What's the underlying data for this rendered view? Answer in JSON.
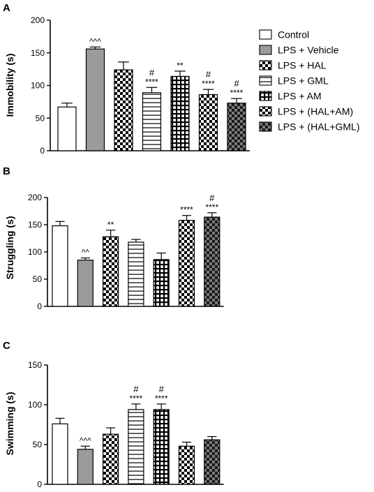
{
  "colors": {
    "axis": "#000000",
    "white_fill": "#ffffff",
    "grey_fill": "#9b9b9b",
    "dark_fill": "#555555",
    "edge": "#000000"
  },
  "legend": [
    {
      "label": "Control",
      "pattern": "white"
    },
    {
      "label": "LPS + Vehicle",
      "pattern": "grey"
    },
    {
      "label": "LPS + HAL",
      "pattern": "checker"
    },
    {
      "label": "LPS + GML",
      "pattern": "hlines"
    },
    {
      "label": "LPS + AM",
      "pattern": "grid"
    },
    {
      "label": "LPS + (HAL+AM)",
      "pattern": "checker"
    },
    {
      "label": "LPS + (HAL+GML)",
      "pattern": "darkchecker"
    }
  ],
  "chart_data": [
    {
      "panel": "A",
      "type": "bar",
      "ylabel": "Immobility (s)",
      "ylim": [
        0,
        200
      ],
      "yticks": [
        "0",
        "50",
        "100",
        "150",
        "200"
      ],
      "categories": [
        "Control",
        "LPS + Vehicle",
        "LPS + HAL",
        "LPS + GML",
        "LPS + AM",
        "LPS + (HAL+AM)",
        "LPS + (HAL+GML)"
      ],
      "values": [
        67,
        156,
        124,
        89,
        114,
        86,
        73
      ],
      "errors": [
        6,
        3,
        12,
        8,
        8,
        8,
        7
      ],
      "annotations": [
        [
          "",
          ""
        ],
        [
          "^^^",
          ""
        ],
        [
          "",
          ""
        ],
        [
          "#",
          "****"
        ],
        [
          "**",
          ""
        ],
        [
          "#",
          "****"
        ],
        [
          "#",
          "****"
        ]
      ]
    },
    {
      "panel": "B",
      "type": "bar",
      "ylabel": "Struggling (s)",
      "ylim": [
        0,
        200
      ],
      "yticks": [
        "0",
        "50",
        "100",
        "150",
        "200"
      ],
      "categories": [
        "Control",
        "LPS + Vehicle",
        "LPS + HAL",
        "LPS + GML",
        "LPS + AM",
        "LPS + (HAL+AM)",
        "LPS + (HAL+GML)"
      ],
      "values": [
        148,
        85,
        128,
        118,
        86,
        158,
        164
      ],
      "errors": [
        8,
        4,
        12,
        5,
        12,
        9,
        8
      ],
      "annotations": [
        [
          "",
          ""
        ],
        [
          "^^",
          ""
        ],
        [
          "**",
          ""
        ],
        [
          "",
          ""
        ],
        [
          "",
          ""
        ],
        [
          "****",
          ""
        ],
        [
          "#",
          "****"
        ]
      ]
    },
    {
      "panel": "C",
      "type": "bar",
      "ylabel": "Swimming (s)",
      "ylim": [
        0,
        150
      ],
      "yticks": [
        "0",
        "50",
        "100",
        "150"
      ],
      "categories": [
        "Control",
        "LPS + Vehicle",
        "LPS + HAL",
        "LPS + GML",
        "LPS + AM",
        "LPS + (HAL+AM)",
        "LPS + (HAL+GML)"
      ],
      "values": [
        76,
        44,
        63,
        94,
        94,
        48,
        56
      ],
      "errors": [
        7,
        4,
        8,
        7,
        7,
        5,
        4
      ],
      "annotations": [
        [
          "",
          ""
        ],
        [
          "^^^",
          ""
        ],
        [
          "",
          ""
        ],
        [
          "#",
          "****"
        ],
        [
          "#",
          "****"
        ],
        [
          "",
          ""
        ],
        [
          "",
          ""
        ]
      ]
    }
  ]
}
